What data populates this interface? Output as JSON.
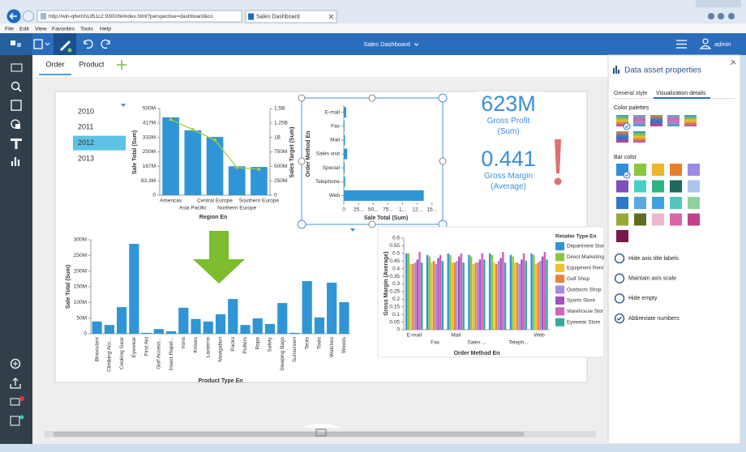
{
  "browser": {
    "url": "http://win-q6vmh1d51c2:9300/bi/index.html?perspective=dashboard&co",
    "tab": "Sales Dashboard",
    "menu": [
      "File",
      "Edit",
      "View",
      "Favorites",
      "Tools",
      "Help"
    ]
  },
  "app": {
    "title": "Sales Dashboard",
    "user": "admin"
  },
  "tabs": {
    "items": [
      "Order",
      "Product"
    ],
    "active": 0
  },
  "filter": {
    "items": [
      "2010",
      "2011",
      "2012",
      "2013"
    ],
    "selected": 2
  },
  "kpis": [
    {
      "value": "623M",
      "label": "Gross Profit (Sum)"
    },
    {
      "value": "0.441",
      "label": "Gross Margin (Average)"
    }
  ],
  "panel": {
    "title": "Data asset properties",
    "tabs": [
      "General style",
      "Visualization details"
    ],
    "palettes_label": "Color palettes",
    "bar_color_label": "Bar color",
    "bar_colors": [
      "#2f8fd8",
      "#8cc63f",
      "#f0b429",
      "#e57f2e",
      "#9c8ae6",
      "#7d4fbd",
      "#45d2c4",
      "#2fb585",
      "#1f6a5e",
      "#a9c6ee",
      "#2c78c9",
      "#5aa9de",
      "#3fa0e2",
      "#52c6be",
      "#8fd09d",
      "#9aa836",
      "#5e6d1f",
      "#f0b7cf",
      "#d866a6",
      "#c3408a",
      "#7a1849"
    ],
    "options": [
      {
        "label": "Hide axis title labels",
        "checked": false
      },
      {
        "label": "Maintain axis scale",
        "checked": false
      },
      {
        "label": "Hide empty",
        "checked": false
      },
      {
        "label": "Abbreviate numbers",
        "checked": true
      }
    ]
  },
  "chart_data": [
    {
      "type": "combo",
      "categories": [
        "Americas",
        "Asia Pacific",
        "Central Europe",
        "Northern Europe",
        "Southern Europe"
      ],
      "x_label": "Region En",
      "y_label": "Sale Total (Sum)",
      "y2_label": "Sales Target (Sum)",
      "series": [
        {
          "type": "bar",
          "color": "#2f95d6",
          "values": [
            449,
            374,
            336,
            167,
            163
          ]
        },
        {
          "type": "line",
          "axis": "y2",
          "color": "#a3cf3c",
          "values": [
            1310,
            1135,
            955,
            480,
            450
          ]
        }
      ],
      "ylim": [
        0,
        500
      ],
      "yticks": [
        0,
        {
          "value": 83.3,
          "label": "83.3M"
        },
        {
          "value": 167,
          "label": "167M"
        },
        {
          "value": 250,
          "label": "250M"
        },
        {
          "value": 333,
          "label": "333M"
        },
        {
          "value": 417,
          "label": "417M"
        },
        {
          "value": 500,
          "label": "500M"
        }
      ],
      "y2lim": [
        0,
        1500
      ],
      "y2ticks": [
        0,
        {
          "value": 250,
          "label": "250M"
        },
        {
          "value": 500,
          "label": "500M"
        },
        {
          "value": 750,
          "label": "750M"
        },
        {
          "value": 1000,
          "label": "1B"
        },
        {
          "value": 1250,
          "label": "1.25B"
        },
        {
          "value": 1500,
          "label": "1.5B"
        }
      ]
    },
    {
      "type": "hbar",
      "categories": [
        "E-mail",
        "Fax",
        "Mail",
        "Sales visit",
        "Special",
        "Telephone",
        "Web"
      ],
      "values": [
        40,
        12,
        20,
        57,
        15,
        22,
        1360
      ],
      "color": "#2f95d6",
      "x_label": "Sale Total (Sum)",
      "y_label": "Order Method En",
      "xlim": [
        0,
        1600
      ],
      "xticks": [
        0,
        {
          "value": 250,
          "label": "25..."
        },
        {
          "value": 500,
          "label": "50..."
        },
        {
          "value": 750,
          "label": "75..."
        },
        {
          "value": 1000,
          "label": "1..."
        },
        {
          "value": 1250,
          "label": "12..."
        },
        {
          "value": 1500,
          "label": "15..."
        }
      ]
    },
    {
      "type": "bar",
      "categories": [
        "Binoculars",
        "Climbing Acc...",
        "Cooking Gear",
        "Eyewear",
        "First Aid",
        "Golf Access...",
        "Insect Repel...",
        "Irons",
        "Knives",
        "Lanterns",
        "Navigation",
        "Packs",
        "Putters",
        "Rope",
        "Safety",
        "Sleeping Bags",
        "Sunscreen",
        "Tents",
        "Tools",
        "Watches",
        "Woods"
      ],
      "values": [
        39,
        28,
        85,
        287,
        3,
        15,
        8,
        83,
        47,
        39,
        62,
        111,
        28,
        49,
        31,
        98,
        3,
        168,
        52,
        163,
        101
      ],
      "color": "#2f95d6",
      "x_label": "Product Type En",
      "y_label": "Sale Total (Sum)",
      "ylim": [
        0,
        300
      ],
      "yticks": [
        0,
        {
          "value": 50,
          "label": "50M"
        },
        {
          "value": 100,
          "label": "100M"
        },
        {
          "value": 150,
          "label": "150M"
        },
        {
          "value": 200,
          "label": "200M"
        },
        {
          "value": 250,
          "label": "250M"
        },
        {
          "value": 300,
          "label": "300M"
        }
      ]
    },
    {
      "type": "grouped-bar",
      "categories": [
        "E-mail",
        "Fax",
        "Mail",
        "Sales ...",
        null,
        "Teleph...",
        "Web"
      ],
      "x_label": "Order Method En",
      "y_label": "Gross Margin (Average)",
      "legend_title": "Retailer Type En",
      "series": [
        {
          "name": "Department Stor",
          "color": "#2f95d6",
          "values": [
            0.5,
            0.49,
            0.5,
            0.49,
            0.5,
            0.49,
            0.5
          ]
        },
        {
          "name": "Direct Marketing",
          "color": "#8cc63f",
          "values": [
            0.5,
            0.48,
            0.49,
            0.48,
            0.49,
            0.48,
            0.49
          ]
        },
        {
          "name": "Equipment Rent",
          "color": "#f0c02e",
          "values": [
            0.43,
            0.44,
            0.44,
            0.43,
            0.44,
            0.44,
            0.43
          ]
        },
        {
          "name": "Golf Shop",
          "color": "#e8843a",
          "values": [
            0.43,
            0.45,
            0.44,
            0.44,
            0.43,
            0.44,
            0.44
          ]
        },
        {
          "name": "Outdoors Shop",
          "color": "#a58ae2",
          "values": [
            0.44,
            0.43,
            0.45,
            0.44,
            0.45,
            0.43,
            0.45
          ]
        },
        {
          "name": "Sports Store",
          "color": "#a64fc2",
          "values": [
            0.46,
            0.47,
            0.48,
            0.46,
            0.47,
            0.46,
            0.48
          ]
        },
        {
          "name": "Warehouse Stor",
          "color": "#d263b8",
          "values": [
            0.51,
            0.49,
            0.5,
            0.5,
            0.51,
            0.5,
            0.51
          ]
        },
        {
          "name": "Eyewear Store",
          "color": "#35a99e",
          "values": [
            0.44,
            0.45,
            0.44,
            0.46,
            0.44,
            0.45,
            0.46
          ]
        }
      ],
      "ylim": [
        0,
        0.6
      ],
      "yticks": [
        0,
        0.05,
        0.1,
        0.15,
        0.2,
        0.25,
        0.3,
        0.35,
        0.4,
        0.45,
        0.5,
        0.55,
        0.6
      ]
    }
  ]
}
